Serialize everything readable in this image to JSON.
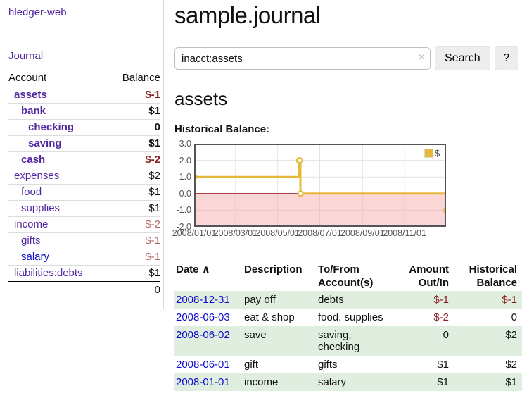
{
  "app": {
    "title": "hledger-web"
  },
  "colors": {
    "link_purple": "#5228a0",
    "link_blue": "#0d0dcc",
    "negative": "#8c1f1f",
    "negative_muted": "#b26a6a",
    "row_green": "#dfeedf",
    "chart_gold": "#e6b93c",
    "zero_line": "#960000"
  },
  "sidebar": {
    "nav": {
      "journal_label": "Journal"
    },
    "accounts_table": {
      "headers": {
        "account": "Account",
        "balance": "Balance"
      },
      "rows": [
        {
          "name": "assets",
          "balance": "$-1",
          "level": 1,
          "bold": true,
          "name_style": "purple",
          "balance_style": "negative-strong"
        },
        {
          "name": "bank",
          "balance": "$1",
          "level": 2,
          "bold": true,
          "name_style": "purple",
          "balance_style": "normal"
        },
        {
          "name": "checking",
          "balance": "0",
          "level": 3,
          "bold": true,
          "name_style": "purple",
          "balance_style": "normal"
        },
        {
          "name": "saving",
          "balance": "$1",
          "level": 3,
          "bold": true,
          "name_style": "purple",
          "balance_style": "normal"
        },
        {
          "name": "cash",
          "balance": "$-2",
          "level": 2,
          "bold": true,
          "name_style": "purple",
          "balance_style": "negative-strong"
        },
        {
          "name": "expenses",
          "balance": "$2",
          "level": 1,
          "bold": false,
          "name_style": "purple",
          "balance_style": "normal"
        },
        {
          "name": "food",
          "balance": "$1",
          "level": 2,
          "bold": false,
          "name_style": "purple",
          "balance_style": "normal"
        },
        {
          "name": "supplies",
          "balance": "$1",
          "level": 2,
          "bold": false,
          "name_style": "purple",
          "balance_style": "normal"
        },
        {
          "name": "income",
          "balance": "$-2",
          "level": 1,
          "bold": false,
          "name_style": "purple",
          "balance_style": "negative-muted"
        },
        {
          "name": "gifts",
          "balance": "$-1",
          "level": 2,
          "bold": false,
          "name_style": "purple",
          "balance_style": "negative-muted"
        },
        {
          "name": "salary",
          "balance": "$-1",
          "level": 2,
          "bold": false,
          "name_style": "blue",
          "balance_style": "negative-muted"
        },
        {
          "name": "liabilities:debts",
          "balance": "$1",
          "level": 1,
          "bold": false,
          "name_style": "purple",
          "balance_style": "normal"
        }
      ],
      "total": "0"
    }
  },
  "header": {
    "journal_title": "sample.journal"
  },
  "search": {
    "value": "inacct:assets",
    "clear_icon": "×",
    "button_label": "Search",
    "help_label": "?"
  },
  "account_page": {
    "title": "assets",
    "chart_label": "Historical Balance:"
  },
  "chart_data": {
    "type": "line",
    "step": true,
    "title": "Historical Balance:",
    "series": [
      {
        "name": "$",
        "color": "#e6b93c",
        "points": [
          [
            "2008-01-01",
            1
          ],
          [
            "2008-06-01",
            2
          ],
          [
            "2008-06-02",
            2
          ],
          [
            "2008-06-03",
            0
          ],
          [
            "2008-12-31",
            -1
          ]
        ]
      }
    ],
    "x_domain": [
      "2008-01-01",
      "2008-12-31"
    ],
    "y_domain": [
      -2,
      3
    ],
    "x_ticks": [
      {
        "t": "2008-01-01",
        "label": "2008/01/01"
      },
      {
        "t": "2008-03-01",
        "label": "2008/03/01"
      },
      {
        "t": "2008-05-01",
        "label": "2008/05/01"
      },
      {
        "t": "2008-07-01",
        "label": "2008/07/01"
      },
      {
        "t": "2008-09-01",
        "label": "2008/09/01"
      },
      {
        "t": "2008-11-01",
        "label": "2008/11/01"
      }
    ],
    "y_ticks": [
      {
        "v": 3,
        "label": "3.0"
      },
      {
        "v": 2,
        "label": "2.0"
      },
      {
        "v": 1,
        "label": "1.0"
      },
      {
        "v": 0,
        "label": "0.0"
      },
      {
        "v": -1,
        "label": "-1.0"
      },
      {
        "v": -2,
        "label": "-2.0"
      }
    ],
    "grid": true,
    "legend_position": "top-right",
    "legend": [
      {
        "label": "$",
        "color": "#e6b93c"
      }
    ],
    "zero_line_color": "#960000",
    "negative_fill": "rgba(244,164,164,0.45)"
  },
  "register_table": {
    "headers": {
      "date": "Date",
      "description": "Description",
      "accounts": "To/From Account(s)",
      "amount": "Amount Out/In",
      "balance": "Historical Balance"
    },
    "sort_icon": "∧",
    "rows": [
      {
        "date": "2008-12-31",
        "description": "pay off",
        "accounts_lines": [
          "debts"
        ],
        "amount": "$-1",
        "balance": "$-1",
        "amount_neg": true,
        "balance_neg": true,
        "shaded": true
      },
      {
        "date": "2008-06-03",
        "description": "eat & shop",
        "accounts_lines": [
          "food, supplies"
        ],
        "amount": "$-2",
        "balance": "0",
        "amount_neg": true,
        "balance_neg": false,
        "shaded": false
      },
      {
        "date": "2008-06-02",
        "description": "save",
        "accounts_lines": [
          "saving,",
          "checking"
        ],
        "amount": "0",
        "balance": "$2",
        "amount_neg": false,
        "balance_neg": false,
        "shaded": true
      },
      {
        "date": "2008-06-01",
        "description": "gift",
        "accounts_lines": [
          "gifts"
        ],
        "amount": "$1",
        "balance": "$2",
        "amount_neg": false,
        "balance_neg": false,
        "shaded": false
      },
      {
        "date": "2008-01-01",
        "description": "income",
        "accounts_lines": [
          "salary"
        ],
        "amount": "$1",
        "balance": "$1",
        "amount_neg": false,
        "balance_neg": false,
        "shaded": true
      }
    ]
  }
}
